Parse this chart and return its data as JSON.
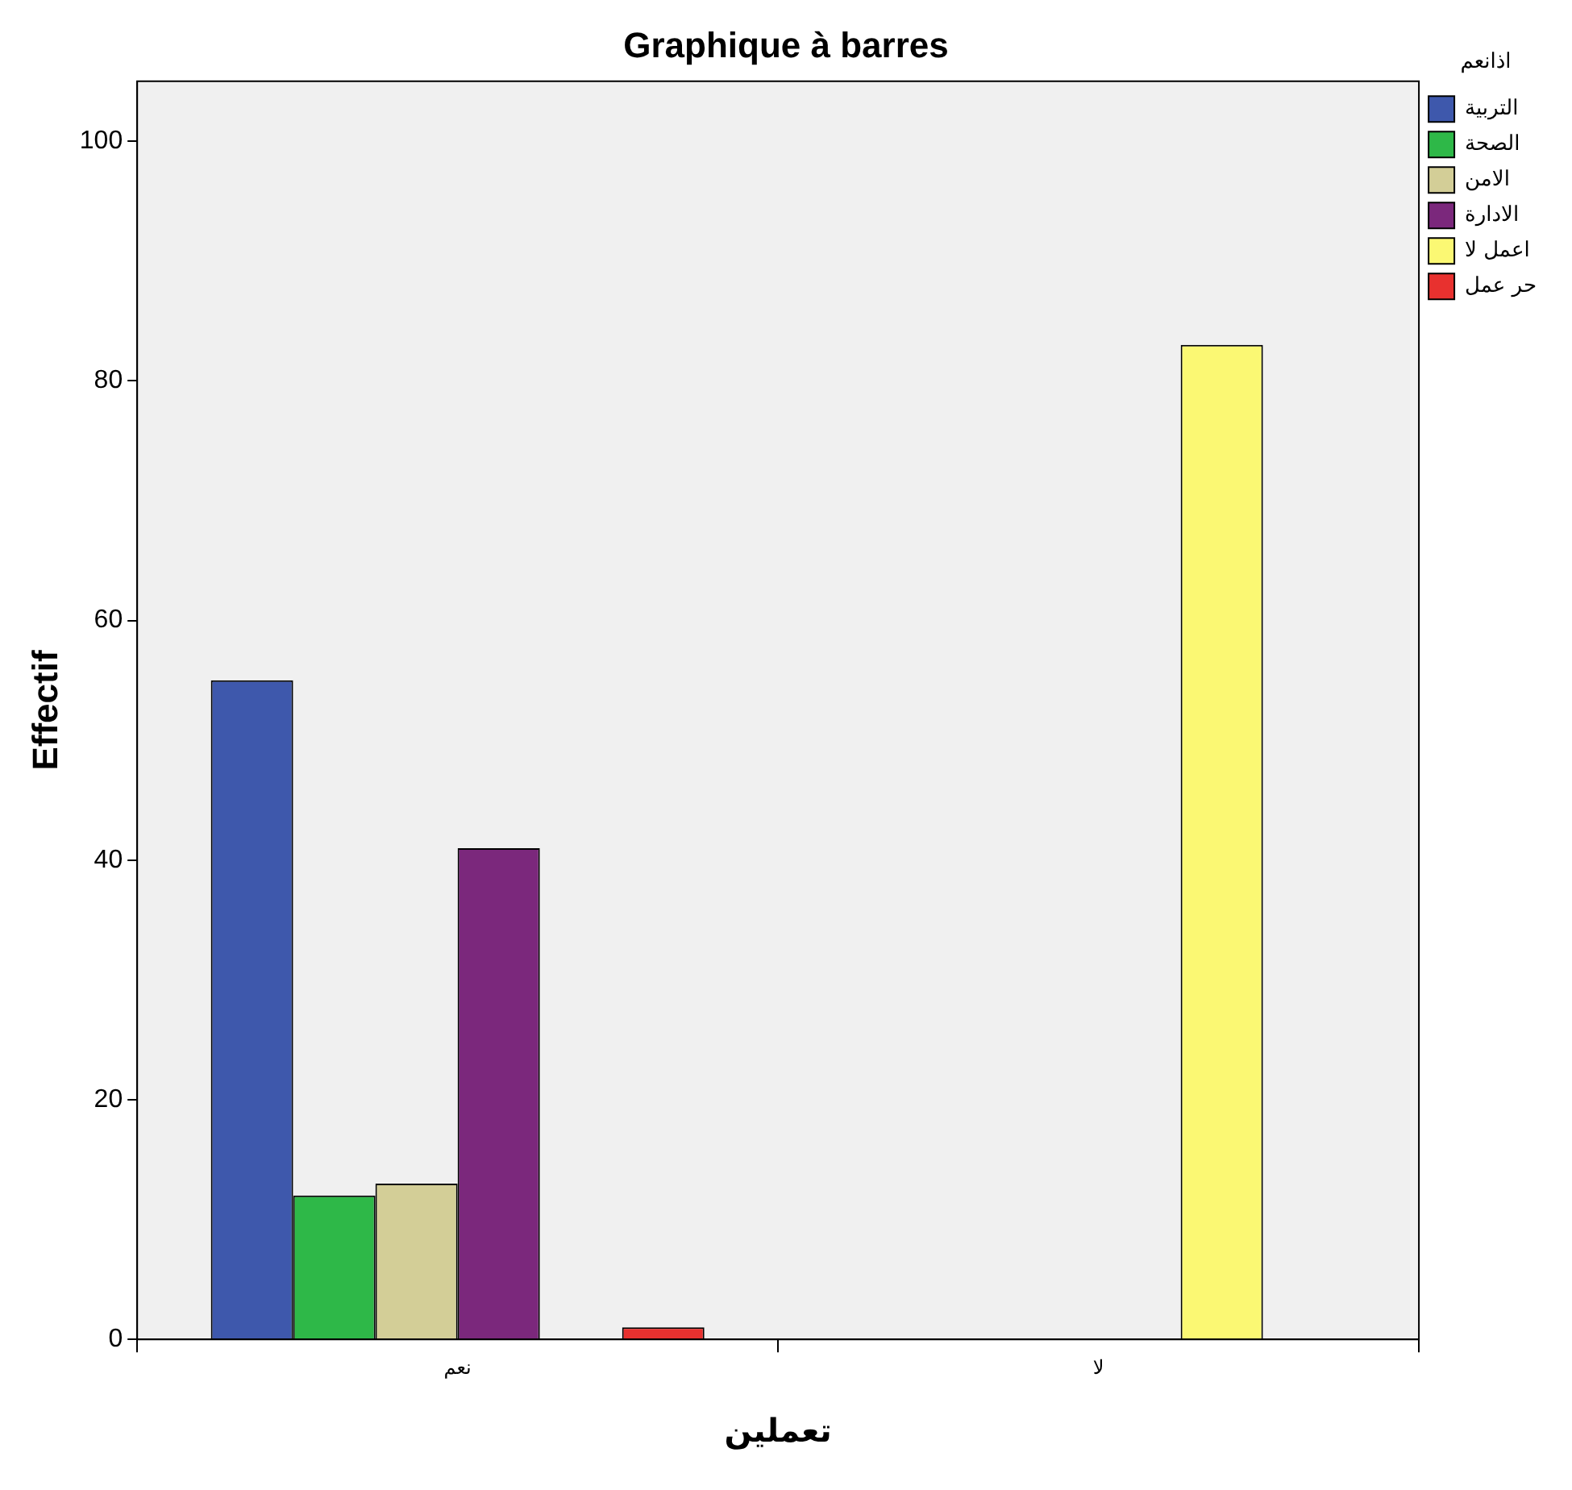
{
  "chart_data": {
    "type": "bar",
    "title": "Graphique à barres",
    "xlabel": "تعملين",
    "ylabel": "Effectif",
    "legend_title": "اذانعم",
    "categories": [
      "نعم",
      "لا"
    ],
    "series": [
      {
        "name": "التربية",
        "color": "#3e58ac",
        "values": [
          55,
          null
        ]
      },
      {
        "name": "الصحة",
        "color": "#2eb848",
        "values": [
          12,
          null
        ]
      },
      {
        "name": "الامن",
        "color": "#d3ce97",
        "values": [
          13,
          null
        ]
      },
      {
        "name": "الادارة",
        "color": "#7b287c",
        "values": [
          41,
          null
        ]
      },
      {
        "name": "اعمل لا",
        "color": "#fbf873",
        "values": [
          null,
          83
        ]
      },
      {
        "name": "حر عمل",
        "color": "#e8312f",
        "values": [
          1,
          null
        ]
      }
    ],
    "ylim": [
      0,
      105
    ],
    "yticks": [
      0,
      20,
      40,
      60,
      80,
      100
    ],
    "grid": false,
    "legend": "right"
  }
}
